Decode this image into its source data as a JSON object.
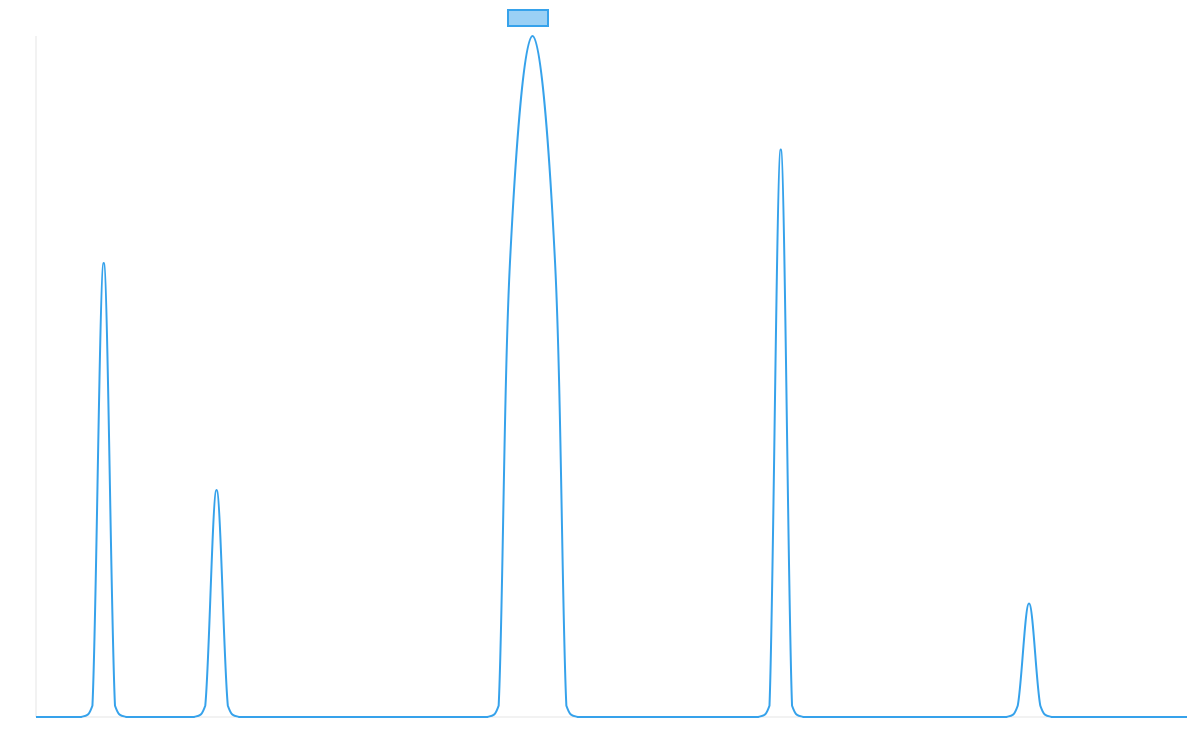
{
  "chart_data": {
    "type": "line",
    "title": "",
    "xlabel": "",
    "ylabel": "",
    "xlim": [
      0,
      51
    ],
    "ylim": [
      0,
      30
    ],
    "grid": false,
    "legend_position": "top-center",
    "series": [
      {
        "color": "#36a2eb",
        "fill_color": "#9ad0f5",
        "points": [
          [
            0,
            0
          ],
          [
            1,
            0
          ],
          [
            2,
            0
          ],
          [
            2.5,
            0.5
          ],
          [
            3,
            20
          ],
          [
            3.5,
            0.5
          ],
          [
            4,
            0
          ],
          [
            5,
            0
          ],
          [
            6,
            0
          ],
          [
            7,
            0
          ],
          [
            7.5,
            0.5
          ],
          [
            8,
            10
          ],
          [
            8.5,
            0.5
          ],
          [
            9,
            0
          ],
          [
            10,
            0
          ],
          [
            11,
            0
          ],
          [
            12,
            0
          ],
          [
            13,
            0
          ],
          [
            14,
            0
          ],
          [
            15,
            0
          ],
          [
            16,
            0
          ],
          [
            17,
            0
          ],
          [
            18,
            0
          ],
          [
            19,
            0
          ],
          [
            20,
            0
          ],
          [
            20.5,
            0.5
          ],
          [
            21,
            20
          ],
          [
            22,
            30
          ],
          [
            23,
            20
          ],
          [
            23.5,
            0.5
          ],
          [
            24,
            0
          ],
          [
            25,
            0
          ],
          [
            26,
            0
          ],
          [
            27,
            0
          ],
          [
            28,
            0
          ],
          [
            29,
            0
          ],
          [
            30,
            0
          ],
          [
            31,
            0
          ],
          [
            32,
            0
          ],
          [
            32.5,
            0.5
          ],
          [
            33,
            25
          ],
          [
            33.5,
            0.5
          ],
          [
            34,
            0
          ],
          [
            35,
            0
          ],
          [
            36,
            0
          ],
          [
            37,
            0
          ],
          [
            38,
            0
          ],
          [
            39,
            0
          ],
          [
            40,
            0
          ],
          [
            41,
            0
          ],
          [
            42,
            0
          ],
          [
            43,
            0
          ],
          [
            43.5,
            0.5
          ],
          [
            44,
            5
          ],
          [
            44.5,
            0.5
          ],
          [
            45,
            0
          ],
          [
            46,
            0
          ],
          [
            47,
            0
          ],
          [
            48,
            0
          ],
          [
            49,
            0
          ],
          [
            50,
            0
          ],
          [
            51,
            0
          ]
        ]
      }
    ]
  }
}
